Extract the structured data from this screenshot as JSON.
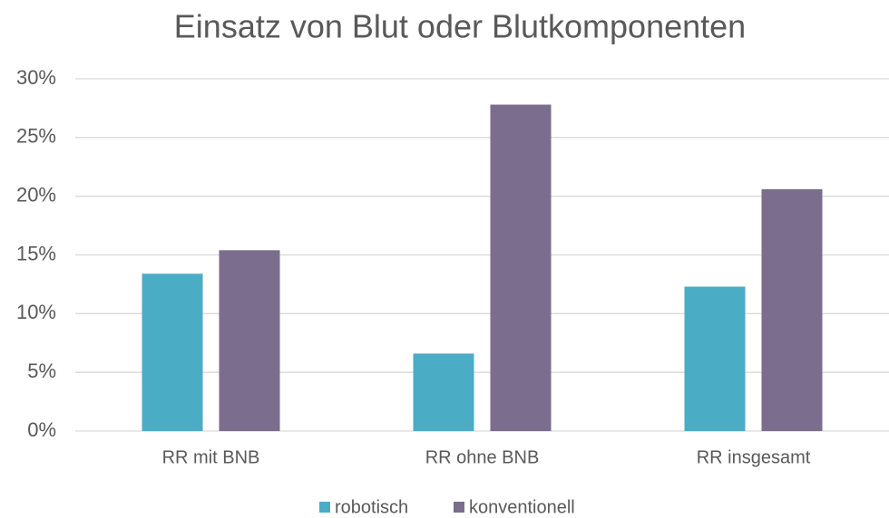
{
  "chart_data": {
    "type": "bar",
    "title": "Einsatz von Blut oder Blutkomponenten",
    "categories": [
      "RR mit BNB",
      "RR ohne BNB",
      "RR insgesamt"
    ],
    "series": [
      {
        "name": "robotisch",
        "color": "#4bacc6",
        "values": [
          13.4,
          6.6,
          12.3
        ]
      },
      {
        "name": "konventionell",
        "color": "#7b6d8d",
        "values": [
          15.4,
          27.8,
          20.6
        ]
      }
    ],
    "ylim": [
      0,
      30
    ],
    "yticks": [
      {
        "value": 0,
        "label": "0%"
      },
      {
        "value": 5,
        "label": "5%"
      },
      {
        "value": 10,
        "label": "10%"
      },
      {
        "value": 15,
        "label": "15%"
      },
      {
        "value": 20,
        "label": "20%"
      },
      {
        "value": 25,
        "label": "25%"
      },
      {
        "value": 30,
        "label": "30%"
      }
    ],
    "grid": true,
    "legend": "bottom"
  }
}
